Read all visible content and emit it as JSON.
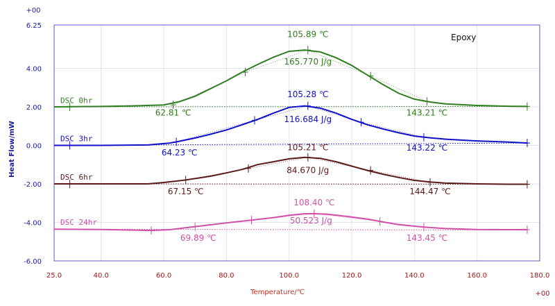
{
  "chart_data": {
    "type": "line",
    "title": "Epoxy",
    "xlabel": "Temperature/℃",
    "ylabel": "Heat Flow/mW",
    "xlim": [
      25.0,
      180.0
    ],
    "ylim": [
      -6.0,
      6.25
    ],
    "x_ticks": [
      "25.0",
      "40.0",
      "60.0",
      "80.0",
      "100.0",
      "120.0",
      "140.0",
      "160.0",
      "180.0"
    ],
    "y_ticks": [
      "6.25",
      "4.00",
      "2.00",
      "0.00",
      "-2.00",
      "-4.00",
      "-6.00"
    ],
    "x_exponent_label": "+00",
    "y_exponent_label": "+00",
    "grid": true,
    "series": [
      {
        "name": "DSC 0hr",
        "color": "#2e7d1e",
        "baseline": [
          [
            25,
            2.0
          ],
          [
            176,
            2.02
          ]
        ],
        "x": [
          25,
          40,
          50,
          60,
          65,
          70,
          75,
          80,
          85,
          90,
          95,
          100,
          105,
          110,
          115,
          120,
          125,
          130,
          135,
          140,
          145,
          150,
          160,
          170,
          176
        ],
        "y": [
          2.0,
          2.02,
          2.05,
          2.1,
          2.27,
          2.55,
          2.95,
          3.35,
          3.8,
          4.2,
          4.58,
          4.88,
          4.95,
          4.85,
          4.55,
          4.15,
          3.65,
          3.15,
          2.7,
          2.4,
          2.25,
          2.15,
          2.07,
          2.03,
          2.02
        ],
        "peak_label": "105.89 ℃",
        "enthalpy_label": "165.770 J/g",
        "onset_label": "62.81 ℃",
        "endset_label": "143.21 ℃"
      },
      {
        "name": "DSC 3hr",
        "color": "#1010c8",
        "baseline": [
          [
            25,
            0.0
          ],
          [
            176,
            0.12
          ]
        ],
        "x": [
          25,
          40,
          55,
          62,
          64,
          70,
          75,
          80,
          85,
          90,
          95,
          100,
          105,
          110,
          115,
          120,
          125,
          130,
          135,
          140,
          145,
          150,
          160,
          170,
          176
        ],
        "y": [
          0.0,
          0.0,
          0.02,
          0.12,
          0.18,
          0.38,
          0.58,
          0.8,
          1.07,
          1.35,
          1.67,
          1.97,
          2.05,
          1.93,
          1.67,
          1.35,
          1.07,
          0.85,
          0.65,
          0.48,
          0.39,
          0.32,
          0.23,
          0.17,
          0.12
        ],
        "peak_label": "105.28 ℃",
        "enthalpy_label": "116.684 J/g",
        "onset_label": "64.23 ℃",
        "endset_label": "143.22 ℃"
      },
      {
        "name": "DSC 6hr",
        "color": "#5a1a1a",
        "baseline": [
          [
            25,
            -2.0
          ],
          [
            176,
            -2.02
          ]
        ],
        "x": [
          25,
          40,
          55,
          60,
          67,
          75,
          80,
          85,
          90,
          95,
          100,
          105,
          110,
          115,
          120,
          125,
          130,
          135,
          140,
          145,
          150,
          160,
          170,
          176
        ],
        "y": [
          -2.0,
          -2.0,
          -2.0,
          -1.93,
          -1.8,
          -1.6,
          -1.43,
          -1.25,
          -1.0,
          -0.85,
          -0.7,
          -0.62,
          -0.68,
          -0.85,
          -1.08,
          -1.3,
          -1.5,
          -1.67,
          -1.82,
          -1.9,
          -1.96,
          -2.0,
          -2.02,
          -2.02
        ]
      },
      {
        "name": "DSC 24hr",
        "color": "#d050a8",
        "baseline": [
          [
            25,
            -4.35
          ],
          [
            176,
            -4.4
          ]
        ],
        "x": [
          25,
          40,
          56,
          62,
          70,
          80,
          88,
          95,
          100,
          105,
          108,
          112,
          118,
          125,
          130,
          135,
          143,
          150,
          160,
          170,
          176
        ],
        "y": [
          -4.35,
          -4.37,
          -4.42,
          -4.38,
          -4.22,
          -4.03,
          -3.88,
          -3.75,
          -3.63,
          -3.55,
          -3.55,
          -3.57,
          -3.68,
          -3.83,
          -3.98,
          -4.12,
          -4.24,
          -4.32,
          -4.37,
          -4.38,
          -4.38
        ]
      }
    ],
    "annotations": [
      {
        "text": "105.89 ℃",
        "x": 106,
        "y": 5.62,
        "color": "#2e7d1e"
      },
      {
        "text": "165.770 J/g",
        "x": 106,
        "y": 4.2,
        "color": "#2e7d1e"
      },
      {
        "text": "62.81 ℃",
        "x": 63,
        "y": 1.55,
        "color": "#2e7d1e"
      },
      {
        "text": "143.21 ℃",
        "x": 144,
        "y": 1.55,
        "color": "#2e7d1e"
      },
      {
        "text": "105.28 ℃",
        "x": 106,
        "y": 2.5,
        "color": "#1010c8"
      },
      {
        "text": "116.684 J/g",
        "x": 106,
        "y": 1.2,
        "color": "#1010c8"
      },
      {
        "text": "64.23 ℃",
        "x": 65,
        "y": -0.52,
        "color": "#1010c8"
      },
      {
        "text": "143.22 ℃",
        "x": 144,
        "y": -0.28,
        "color": "#1010c8"
      },
      {
        "text": "105.21 ℃",
        "x": 106,
        "y": -0.25,
        "color": "#5a1a1a"
      },
      {
        "text": "84.670 J/g",
        "x": 106,
        "y": -1.45,
        "color": "#5a1a1a"
      },
      {
        "text": "67.15 ℃",
        "x": 67,
        "y": -2.55,
        "color": "#5a1a1a"
      },
      {
        "text": "144.47 ℃",
        "x": 145,
        "y": -2.55,
        "color": "#5a1a1a"
      },
      {
        "text": "108.40 ℃",
        "x": 108,
        "y": -3.12,
        "color": "#d050a8"
      },
      {
        "text": "50.523 J/g",
        "x": 107,
        "y": -4.05,
        "color": "#d050a8"
      },
      {
        "text": "69.89 ℃",
        "x": 71,
        "y": -4.95,
        "color": "#d050a8"
      },
      {
        "text": "143.45 ℃",
        "x": 144,
        "y": -4.95,
        "color": "#d050a8"
      }
    ],
    "series_labels": [
      {
        "text": "DSC 0hr",
        "series": 0,
        "x": 27,
        "y": 2.2
      },
      {
        "text": "DSC 3hr",
        "series": 1,
        "x": 27,
        "y": 0.22
      },
      {
        "text": "DSC 6hr",
        "series": 2,
        "x": 27,
        "y": -1.78
      },
      {
        "text": "DSC  24hr",
        "series": 3,
        "x": 27,
        "y": -4.12
      }
    ],
    "markers": [
      {
        "series": 0,
        "points": [
          [
            30,
            2.0
          ],
          [
            63,
            2.1
          ],
          [
            86,
            3.8
          ],
          [
            106,
            4.95
          ],
          [
            126,
            3.6
          ],
          [
            144,
            2.28
          ],
          [
            176,
            2.02
          ]
        ]
      },
      {
        "series": 1,
        "points": [
          [
            30,
            0.0
          ],
          [
            64,
            0.18
          ],
          [
            89,
            1.3
          ],
          [
            106,
            2.05
          ],
          [
            123,
            1.2
          ],
          [
            143,
            0.42
          ],
          [
            176,
            0.12
          ]
        ]
      },
      {
        "series": 2,
        "points": [
          [
            30,
            -2.0
          ],
          [
            67,
            -1.8
          ],
          [
            87,
            -1.2
          ],
          [
            106,
            -0.62
          ],
          [
            126,
            -1.3
          ],
          [
            145,
            -1.92
          ],
          [
            176,
            -2.02
          ]
        ]
      },
      {
        "series": 3,
        "points": [
          [
            56,
            -4.42
          ],
          [
            70,
            -4.22
          ],
          [
            88,
            -3.88
          ],
          [
            108,
            -3.55
          ],
          [
            129,
            -3.95
          ],
          [
            143,
            -4.24
          ],
          [
            176,
            -4.38
          ]
        ]
      }
    ]
  }
}
